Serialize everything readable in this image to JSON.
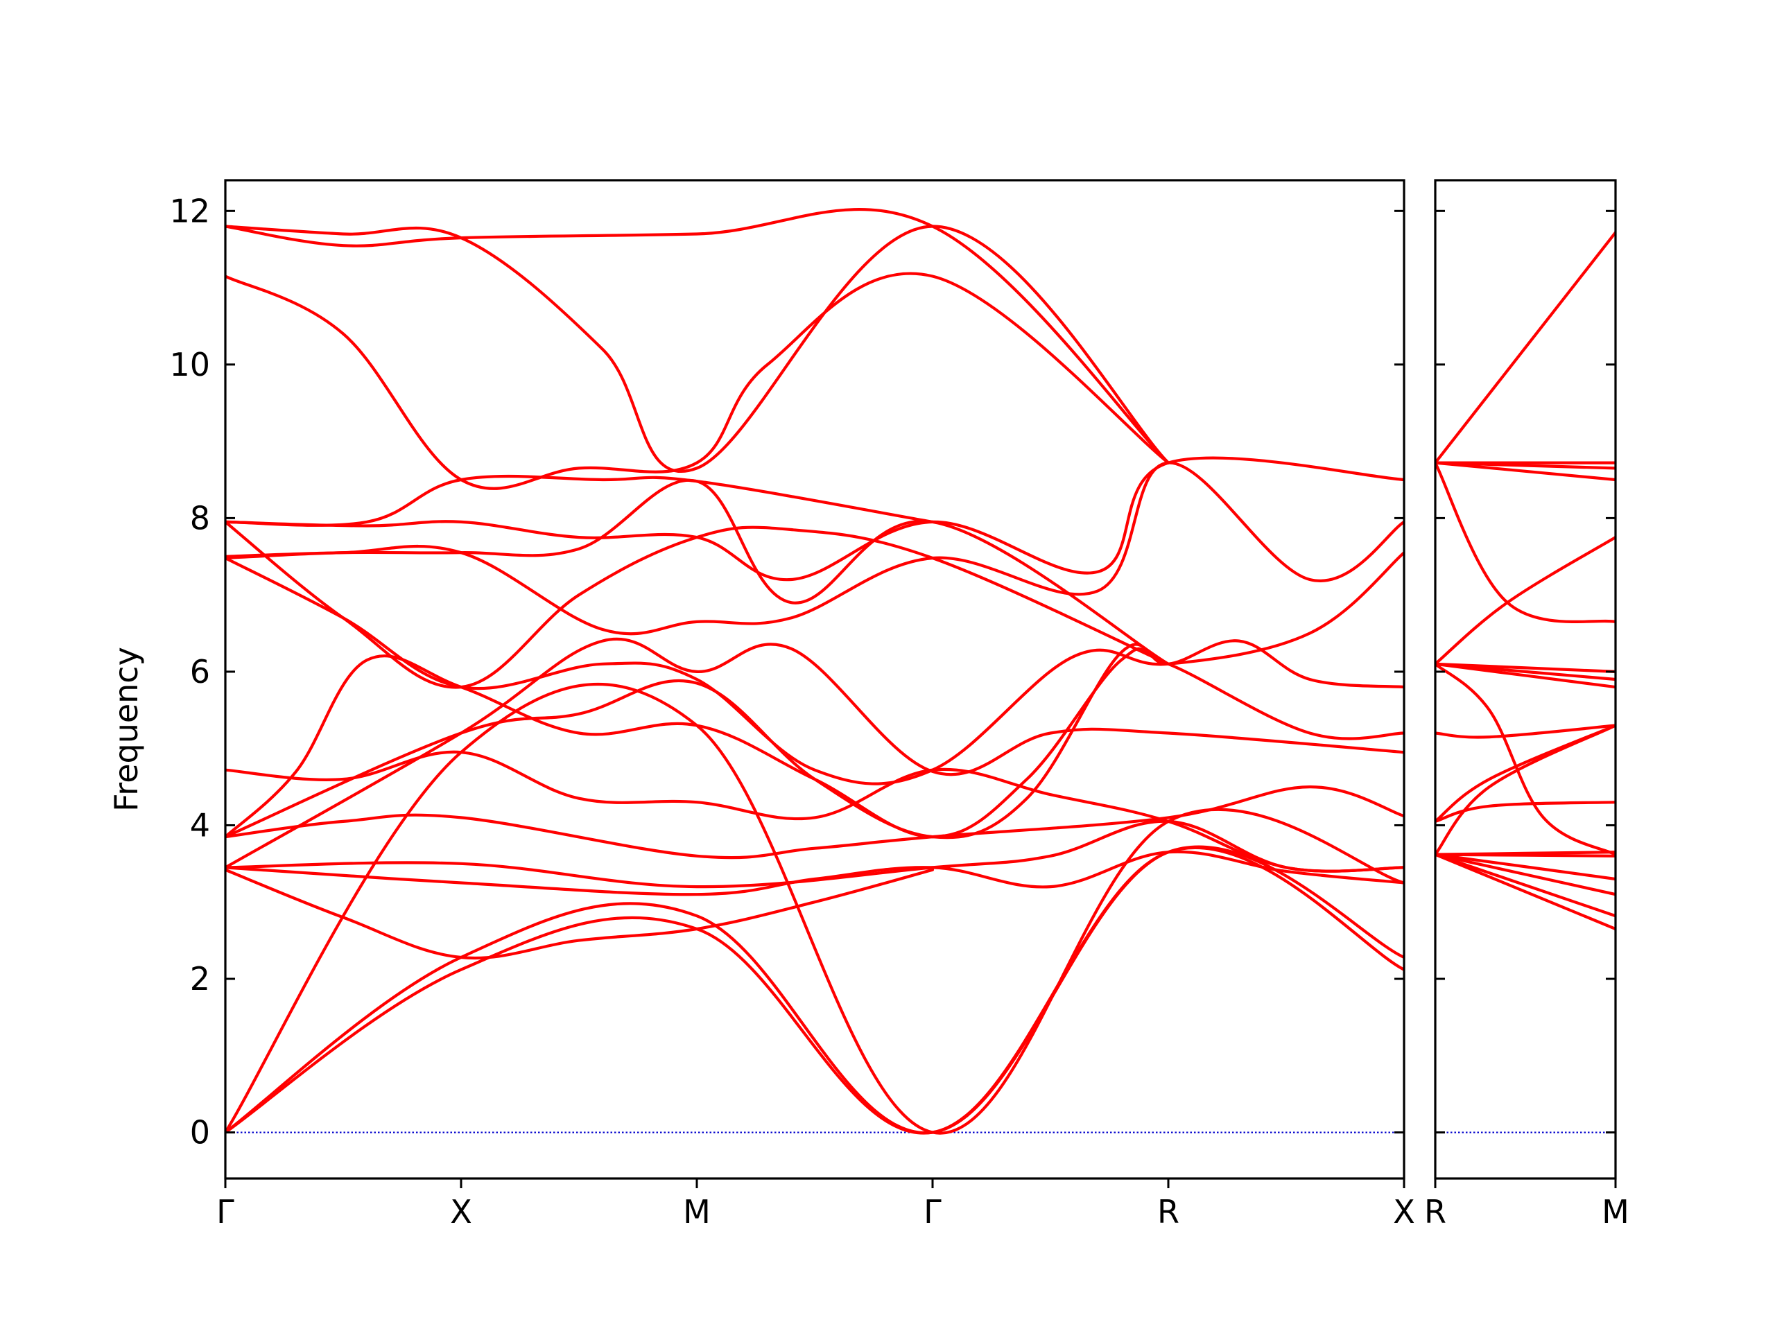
{
  "chart_data": {
    "type": "line",
    "ylabel": "Frequency",
    "ylim": [
      -0.6,
      12.4
    ],
    "yticks": [
      "0",
      "2",
      "4",
      "6",
      "8",
      "10",
      "12"
    ],
    "zero_line_color": "#0000cc",
    "band_color": "#ff0000",
    "panels": [
      {
        "name": "main",
        "xticks": [
          "Γ",
          "X",
          "M",
          "Γ",
          "R",
          "X"
        ],
        "bands": [
          {
            "x": [
              0,
              1,
              2,
              3,
              4,
              5
            ],
            "y": [
              0,
              2.12,
              2.65,
              0,
              3.65,
              2.12
            ]
          },
          {
            "x": [
              0,
              1,
              2,
              3,
              4,
              5
            ],
            "y": [
              0,
              2.28,
              2.82,
              0,
              3.65,
              2.28
            ]
          },
          {
            "x": [
              0,
              1,
              2,
              3,
              4,
              5
            ],
            "y": [
              0,
              4.95,
              5.3,
              0,
              4.05,
              3.25
            ]
          },
          {
            "x": [
              0,
              0.5,
              1,
              1.5,
              2,
              2.5,
              3
            ],
            "y": [
              3.42,
              2.8,
              2.28,
              2.5,
              2.65,
              3.0,
              3.42
            ]
          },
          {
            "x": [
              0,
              1,
              2,
              2.5,
              3,
              3.5,
              4,
              4.5,
              5
            ],
            "y": [
              3.45,
              3.25,
              3.1,
              3.3,
              3.45,
              3.2,
              3.65,
              3.4,
              3.25
            ]
          },
          {
            "x": [
              0,
              1,
              2,
              3,
              3.5,
              4,
              4.5,
              5
            ],
            "y": [
              3.45,
              3.5,
              3.2,
              3.45,
              3.6,
              4.05,
              3.45,
              3.45
            ]
          },
          {
            "x": [
              0,
              0.5,
              1,
              2,
              2.5,
              3,
              4,
              4.6,
              5
            ],
            "y": [
              3.85,
              4.05,
              4.1,
              3.6,
              3.7,
              3.85,
              4.1,
              4.5,
              4.12
            ]
          },
          {
            "x": [
              0,
              0.5,
              1,
              1.5,
              2,
              2.5,
              3,
              3.5,
              4,
              4.5,
              5
            ],
            "y": [
              4.72,
              4.6,
              4.95,
              4.35,
              4.3,
              4.1,
              4.72,
              4.4,
              4.05,
              3.45,
              3.45
            ]
          },
          {
            "x": [
              0,
              0.3,
              0.6,
              1,
              1.5,
              2,
              2.5,
              3,
              3.4,
              3.8,
              4,
              4.6,
              5
            ],
            "y": [
              3.85,
              4.7,
              6.15,
              5.8,
              5.2,
              5.3,
              4.6,
              3.85,
              4.6,
              6.15,
              6.1,
              5.2,
              5.2
            ]
          },
          {
            "x": [
              0,
              1,
              1.5,
              2,
              2.5,
              3,
              3.4,
              3.8,
              4,
              4.3,
              4.6,
              5
            ],
            "y": [
              3.85,
              5.2,
              5.45,
              5.85,
              4.6,
              3.85,
              4.35,
              6.25,
              6.1,
              6.4,
              5.9,
              5.8
            ]
          },
          {
            "x": [
              0,
              1,
              1.6,
              2,
              2.4,
              3,
              3.5,
              4,
              5
            ],
            "y": [
              3.45,
              5.2,
              6.4,
              6.0,
              6.3,
              4.7,
              5.2,
              5.2,
              4.95
            ]
          },
          {
            "x": [
              0,
              0.5,
              1,
              1.6,
              2,
              2.5,
              3,
              3.6,
              4,
              4.6,
              5
            ],
            "y": [
              7.48,
              6.7,
              5.8,
              6.1,
              5.9,
              4.72,
              4.72,
              6.2,
              6.1,
              6.5,
              7.55
            ]
          },
          {
            "x": [
              0,
              0.5,
              1,
              1.6,
              2,
              2.4,
              3,
              3.7,
              4,
              4.6,
              5
            ],
            "y": [
              7.48,
              7.55,
              7.55,
              6.55,
              6.65,
              6.7,
              7.48,
              7.05,
              8.72,
              7.2,
              7.95
            ]
          },
          {
            "x": [
              0,
              0.6,
              1,
              1.5,
              2,
              2.4,
              3,
              3.7,
              4,
              5
            ],
            "y": [
              7.95,
              7.9,
              7.95,
              7.75,
              7.75,
              7.2,
              7.95,
              7.3,
              8.72,
              8.5
            ]
          },
          {
            "x": [
              0,
              0.5,
              1,
              1.5,
              2,
              2.4,
              3,
              4
            ],
            "y": [
              7.95,
              6.7,
              5.8,
              7.0,
              7.75,
              7.85,
              7.48,
              6.1
            ]
          },
          {
            "x": [
              0,
              0.5,
              1,
              1.5,
              2,
              2.4,
              3,
              4
            ],
            "y": [
              7.5,
              7.55,
              7.55,
              7.6,
              8.48,
              6.9,
              7.95,
              6.1
            ]
          },
          {
            "x": [
              0,
              0.5,
              1,
              2,
              3,
              4
            ],
            "y": [
              11.8,
              11.55,
              11.65,
              11.7,
              11.8,
              8.72
            ]
          },
          {
            "x": [
              0,
              0.5,
              1,
              1.6,
              2,
              3,
              4
            ],
            "y": [
              11.8,
              11.7,
              11.65,
              10.2,
              8.65,
              11.8,
              8.72
            ]
          },
          {
            "x": [
              0,
              0.5,
              1,
              1.5,
              2,
              2.3,
              3,
              4
            ],
            "y": [
              11.15,
              10.4,
              8.5,
              8.65,
              8.72,
              10.0,
              11.15,
              8.72
            ]
          },
          {
            "x": [
              0,
              0.6,
              1,
              1.6,
              2,
              3
            ],
            "y": [
              7.95,
              7.95,
              8.5,
              8.5,
              8.48,
              7.95
            ]
          }
        ]
      },
      {
        "name": "side",
        "xticks": [
          "R",
          "M"
        ],
        "bands": [
          {
            "x": [
              0,
              1
            ],
            "y": [
              3.62,
              2.65
            ]
          },
          {
            "x": [
              0,
              1
            ],
            "y": [
              3.62,
              2.82
            ]
          },
          {
            "x": [
              0,
              1
            ],
            "y": [
              3.62,
              3.1
            ]
          },
          {
            "x": [
              0,
              1
            ],
            "y": [
              3.62,
              3.3
            ]
          },
          {
            "x": [
              0,
              1
            ],
            "y": [
              3.62,
              3.6
            ]
          },
          {
            "x": [
              0,
              1
            ],
            "y": [
              3.62,
              3.65
            ]
          },
          {
            "x": [
              0,
              0.3,
              1
            ],
            "y": [
              4.05,
              4.25,
              4.3
            ]
          },
          {
            "x": [
              0,
              0.3,
              1
            ],
            "y": [
              3.62,
              4.5,
              5.3
            ]
          },
          {
            "x": [
              0,
              0.3,
              1
            ],
            "y": [
              4.05,
              4.6,
              5.3
            ]
          },
          {
            "x": [
              0,
              0.3,
              1
            ],
            "y": [
              5.2,
              5.15,
              5.3
            ]
          },
          {
            "x": [
              0,
              0.3,
              0.6,
              1
            ],
            "y": [
              6.1,
              5.5,
              4.1,
              3.62
            ]
          },
          {
            "x": [
              0,
              1
            ],
            "y": [
              6.1,
              5.8
            ]
          },
          {
            "x": [
              0,
              1
            ],
            "y": [
              6.1,
              5.9
            ]
          },
          {
            "x": [
              0,
              1
            ],
            "y": [
              6.1,
              6.0
            ]
          },
          {
            "x": [
              0,
              0.4,
              1
            ],
            "y": [
              6.1,
              6.9,
              7.75
            ]
          },
          {
            "x": [
              0,
              0.4,
              1
            ],
            "y": [
              8.72,
              6.9,
              6.65
            ]
          },
          {
            "x": [
              0,
              1
            ],
            "y": [
              8.72,
              8.5
            ]
          },
          {
            "x": [
              0,
              1
            ],
            "y": [
              8.72,
              8.65
            ]
          },
          {
            "x": [
              0,
              1
            ],
            "y": [
              8.72,
              8.72
            ]
          },
          {
            "x": [
              0,
              1
            ],
            "y": [
              8.72,
              11.72
            ]
          }
        ]
      }
    ]
  }
}
